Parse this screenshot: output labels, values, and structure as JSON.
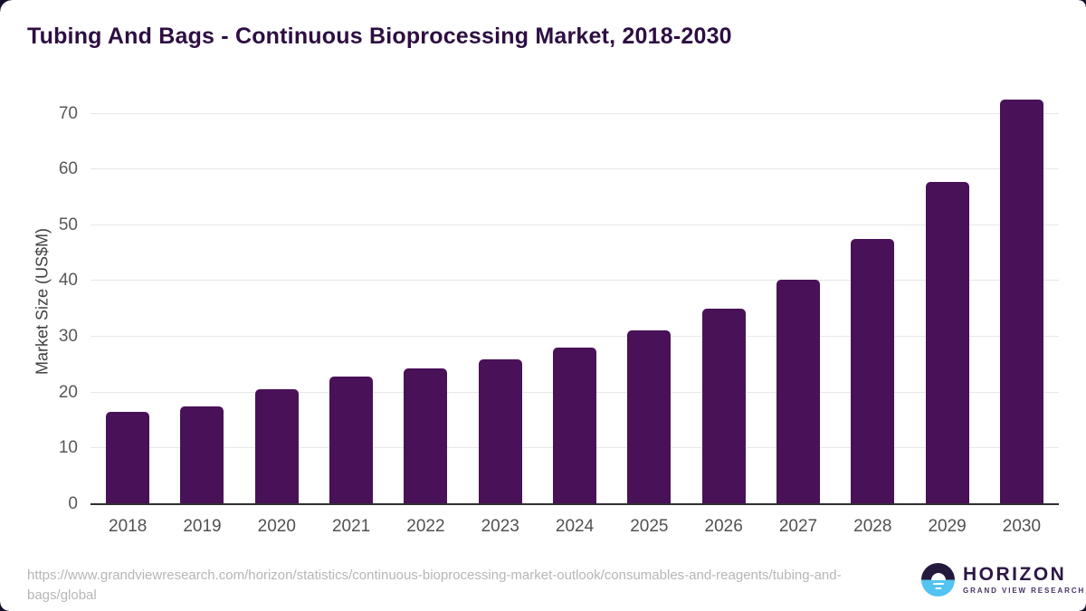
{
  "page": {
    "title": "Tubing And Bags - Continuous Bioprocessing Market, 2018-2030"
  },
  "chart_data": {
    "type": "bar",
    "title": "Tubing And Bags - Continuous Bioprocessing Market, 2018-2030",
    "categories": [
      "2018",
      "2019",
      "2020",
      "2021",
      "2022",
      "2023",
      "2024",
      "2025",
      "2026",
      "2027",
      "2028",
      "2029",
      "2030"
    ],
    "values": [
      16.5,
      17.5,
      20.6,
      22.9,
      24.3,
      25.9,
      28.1,
      31.1,
      35.1,
      40.3,
      47.5,
      57.7,
      72.5
    ],
    "xlabel": "",
    "ylabel": "Market Size (US$M)",
    "ylim": [
      0,
      73
    ],
    "yticks": [
      0,
      10,
      20,
      30,
      40,
      50,
      60,
      70
    ],
    "grid": "horizontal",
    "legend": "none",
    "bar_color": "#491158"
  },
  "footer": {
    "source_url": "https://www.grandviewresearch.com/horizon/statistics/continuous-bioprocessing-market-outlook/consumables-and-reagents/tubing-and-bags/global"
  },
  "logo": {
    "brand": "HORIZON",
    "tagline": "GRAND VIEW RESEARCH",
    "icon": "horizon-sun-icon"
  },
  "colors": {
    "bar": "#491158",
    "title_text": "#2d0e42",
    "axis_line": "#2e2e33",
    "gridline": "#e7e7e7",
    "tick_text": "#515154",
    "url_text": "#b6b6b6",
    "logo_dark": "#241a3e",
    "logo_blue": "#53c3f1"
  }
}
